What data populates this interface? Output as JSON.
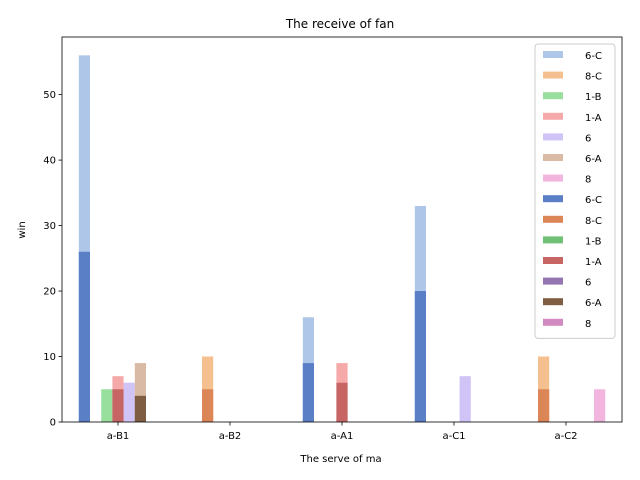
{
  "chart_data": {
    "type": "bar",
    "title": "The receive of fan",
    "xlabel": "The serve of ma",
    "ylabel": "win",
    "categories": [
      "a-B1",
      "a-B2",
      "a-A1",
      "a-C1",
      "a-C2"
    ],
    "ylim": [
      0,
      58.8
    ],
    "yticks": [
      0,
      10,
      20,
      30,
      40,
      50
    ],
    "grid": false,
    "legend_position": "top-right",
    "series": [
      {
        "name": "6-C",
        "layer": "light",
        "color": "#aec7e8",
        "values": [
          56,
          0,
          16,
          33,
          0
        ]
      },
      {
        "name": "8-C",
        "layer": "light",
        "color": "#f4c08f",
        "values": [
          0,
          10,
          0,
          0,
          10
        ]
      },
      {
        "name": "1-B",
        "layer": "light",
        "color": "#98df9e",
        "values": [
          5,
          0,
          0,
          0,
          0
        ]
      },
      {
        "name": "1-A",
        "layer": "light",
        "color": "#f5a9a9",
        "values": [
          7,
          0,
          9,
          0,
          0
        ]
      },
      {
        "name": "6",
        "layer": "light",
        "color": "#d0c3f5",
        "values": [
          6,
          0,
          0,
          7,
          0
        ]
      },
      {
        "name": "6-A",
        "layer": "light",
        "color": "#d9bba5",
        "values": [
          9,
          0,
          0,
          0,
          0
        ]
      },
      {
        "name": "8",
        "layer": "light",
        "color": "#f2b6de",
        "values": [
          0,
          0,
          0,
          0,
          5
        ]
      },
      {
        "name": "6-C",
        "layer": "dark",
        "color": "#5a7fc6",
        "values": [
          26,
          0,
          9,
          20,
          0
        ]
      },
      {
        "name": "8-C",
        "layer": "dark",
        "color": "#dc8556",
        "values": [
          0,
          5,
          0,
          0,
          5
        ]
      },
      {
        "name": "1-B",
        "layer": "dark",
        "color": "#72c075",
        "values": [
          0,
          0,
          0,
          0,
          0
        ]
      },
      {
        "name": "1-A",
        "layer": "dark",
        "color": "#c76565",
        "values": [
          5,
          0,
          6,
          0,
          0
        ]
      },
      {
        "name": "6",
        "layer": "dark",
        "color": "#9575b1",
        "values": [
          0,
          0,
          0,
          0,
          0
        ]
      },
      {
        "name": "6-A",
        "layer": "dark",
        "color": "#7e5d43",
        "values": [
          4,
          0,
          0,
          0,
          0
        ]
      },
      {
        "name": "8",
        "layer": "dark",
        "color": "#d18abf",
        "values": [
          0,
          0,
          0,
          0,
          0
        ]
      }
    ]
  }
}
